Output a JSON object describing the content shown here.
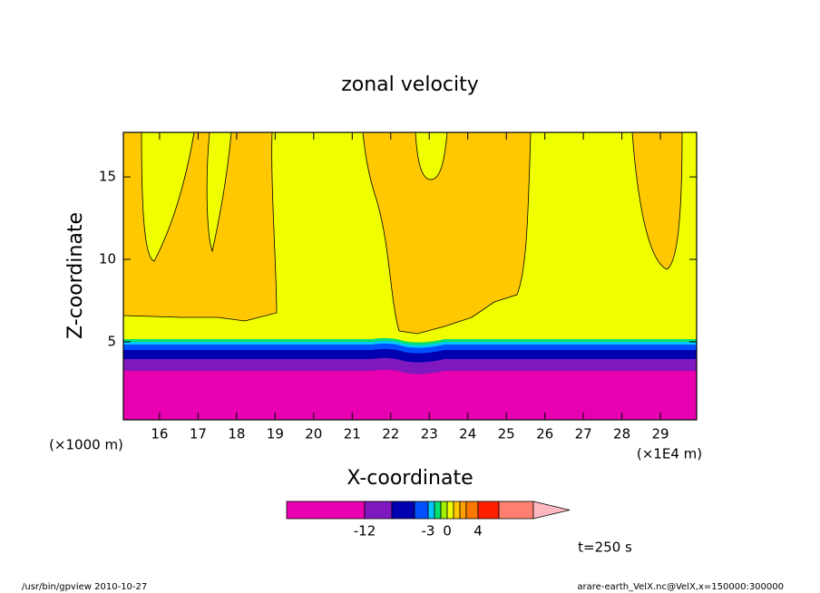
{
  "chart_data": {
    "type": "contour",
    "title": "zonal velocity",
    "x_label": "X-coordinate",
    "y_label": "Z-coordinate",
    "x_unit_left": "(×1000 m)",
    "x_unit_right": "(×1E4 m)",
    "xlim": [
      15.06,
      29.94
    ],
    "xticks": [
      16,
      17,
      18,
      19,
      20,
      21,
      22,
      23,
      24,
      25,
      26,
      27,
      28,
      29
    ],
    "ylim": [
      0.27,
      17.7
    ],
    "yticks": [
      5,
      10,
      15
    ],
    "colorbar": {
      "colors": [
        "#e800b0",
        "#8018c0",
        "#0000b0",
        "#0050ff",
        "#00c8ff",
        "#00e070",
        "#a0f000",
        "#f0ff00",
        "#ffc800",
        "#ffa000",
        "#ff7800",
        "#ff2000",
        "#ff8070",
        "#ffb8c0"
      ],
      "levels": [
        -12,
        null,
        null,
        -3,
        null,
        null,
        0,
        null,
        null,
        null,
        4,
        null,
        null
      ]
    },
    "time_label": "t=250 s",
    "footer_left": "/usr/bin/gpview   2010-10-27",
    "footer_right": "arare-earth_VelX.nc@VelX,x=150000:300000"
  }
}
